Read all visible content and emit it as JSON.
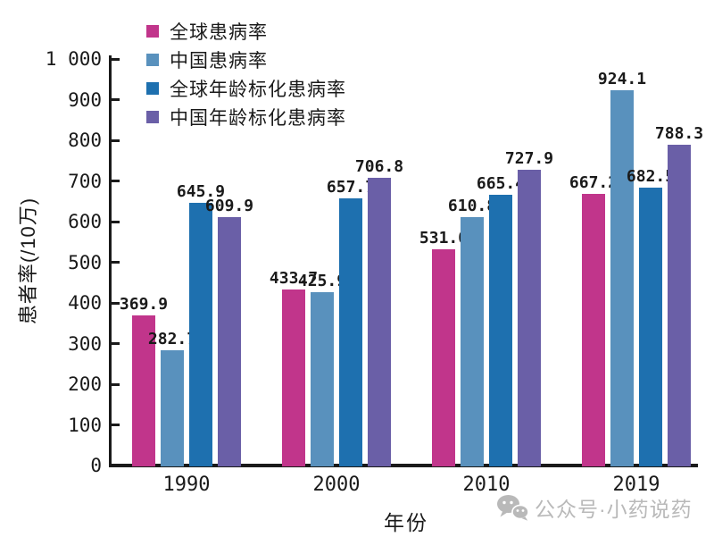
{
  "chart_data": {
    "type": "bar",
    "title": "",
    "xlabel": "年份",
    "ylabel": "患者率(/10万)",
    "ylim": [
      0,
      1000
    ],
    "grid": false,
    "legend_position": "top-left-inside",
    "categories": [
      "1990",
      "2000",
      "2010",
      "2019"
    ],
    "series": [
      {
        "name": "全球患病率",
        "color": "#c1358b",
        "values": [
          369.9,
          433.7,
          531.0,
          667.2
        ]
      },
      {
        "name": "中国患病率",
        "color": "#5991bd",
        "values": [
          282.7,
          425.9,
          610.8,
          924.1
        ]
      },
      {
        "name": "全球年龄标化患病率",
        "color": "#1e70af",
        "values": [
          645.9,
          657.7,
          665.4,
          682.5
        ]
      },
      {
        "name": "中国年龄标化患病率",
        "color": "#6a5fa7",
        "values": [
          609.9,
          706.8,
          727.9,
          788.3
        ]
      }
    ],
    "y_ticks": [
      {
        "value": 0,
        "label": "0"
      },
      {
        "value": 100,
        "label": "100"
      },
      {
        "value": 200,
        "label": "200"
      },
      {
        "value": 300,
        "label": "300"
      },
      {
        "value": 400,
        "label": "400"
      },
      {
        "value": 500,
        "label": "500"
      },
      {
        "value": 600,
        "label": "600"
      },
      {
        "value": 700,
        "label": "700"
      },
      {
        "value": 800,
        "label": "800"
      },
      {
        "value": 900,
        "label": "900"
      },
      {
        "value": 1000,
        "label": "1 000"
      }
    ],
    "value_label_decimals": 1
  },
  "watermark": {
    "icon": "wechat-icon",
    "text": "公众号·小药说药",
    "color": "#b9b9b9"
  }
}
